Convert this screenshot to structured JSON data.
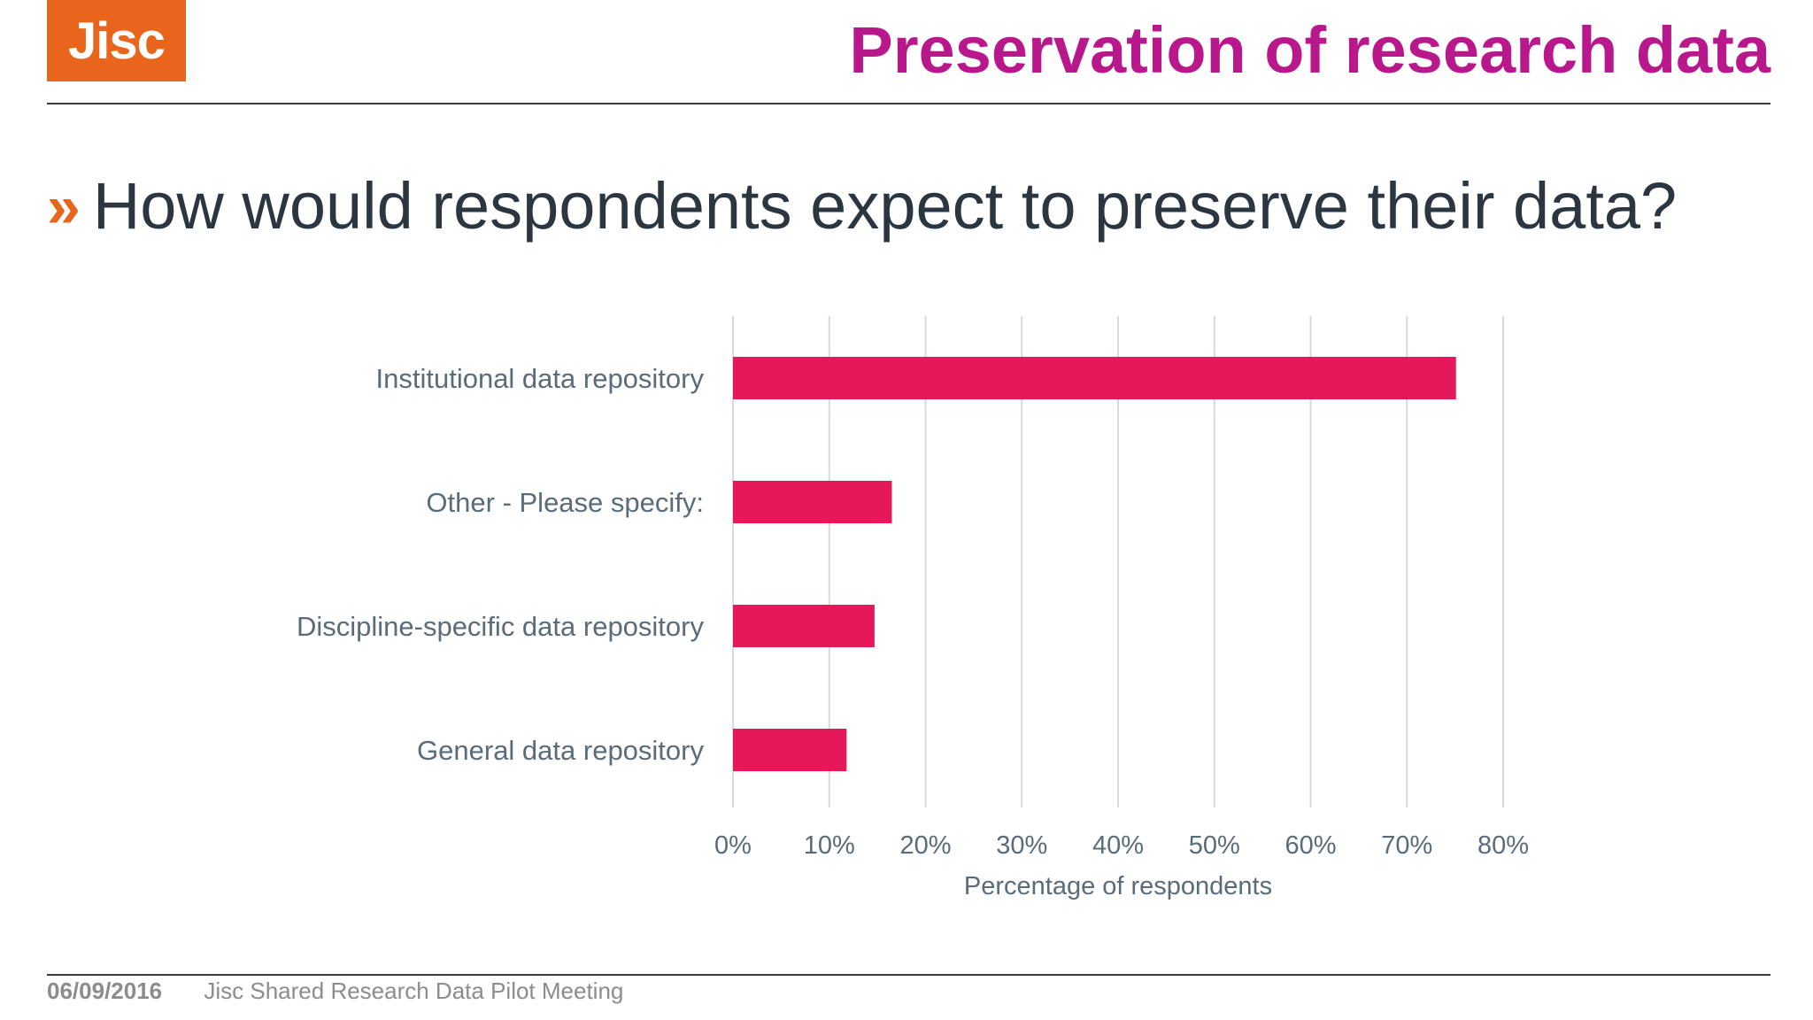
{
  "header": {
    "logo_text": "Jisc",
    "title": "Preservation of research data"
  },
  "question": {
    "bullet_icon": "double-chevron-right-icon",
    "text": "How would respondents expect to preserve their data?"
  },
  "colors": {
    "accent_orange": "#e9651b",
    "title_magenta": "#b8188c",
    "bar_pink": "#e5195a",
    "text_dark": "#2b3640",
    "axis_text": "#5a6b7a"
  },
  "chart_data": {
    "type": "bar",
    "orientation": "horizontal",
    "categories": [
      "Institutional data repository",
      "Other - Please specify:",
      "Discipline-specific data repository",
      "General data repository"
    ],
    "values": [
      75.1,
      16.5,
      14.7,
      11.8
    ],
    "xlabel": "Percentage of respondents",
    "ylabel": "",
    "xlim": [
      0,
      80
    ],
    "xticks": [
      "0%",
      "10%",
      "20%",
      "30%",
      "40%",
      "50%",
      "60%",
      "70%",
      "80%"
    ],
    "grid": true,
    "legend": "none"
  },
  "footer": {
    "date": "06/09/2016",
    "event": "Jisc Shared Research Data Pilot Meeting"
  }
}
